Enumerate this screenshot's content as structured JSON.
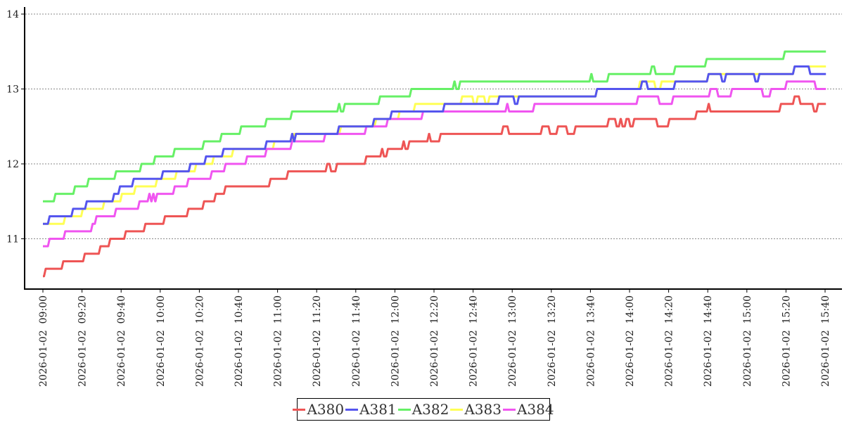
{
  "chart_data": {
    "type": "line",
    "step": true,
    "title": "",
    "xlabel": "",
    "ylabel": "",
    "x_unit": "minutes after 2026-01-02 09:00",
    "xlim": [
      0,
      400
    ],
    "ylim": [
      10.33,
      14.07
    ],
    "grid": "horizontal dotted",
    "y_ticks": [
      "11",
      "12",
      "13",
      "14"
    ],
    "y_tick_values": [
      11,
      12,
      13,
      14
    ],
    "x_ticks": [
      "2026-01-02  09:00",
      "2026-01-02  09:20",
      "2026-01-02  09:40",
      "2026-01-02  10:00",
      "2026-01-02  10:20",
      "2026-01-02  10:40",
      "2026-01-02  11:00",
      "2026-01-02  11:20",
      "2026-01-02  11:40",
      "2026-01-02  12:00",
      "2026-01-02  12:20",
      "2026-01-02  12:40",
      "2026-01-02  13:00",
      "2026-01-02  13:20",
      "2026-01-02  13:40",
      "2026-01-02  14:00",
      "2026-01-02  14:20",
      "2026-01-02  14:40",
      "2026-01-02  15:00",
      "2026-01-02  15:20",
      "2026-01-02  15:40"
    ],
    "legend_placement": "bottom-center",
    "series": [
      {
        "name": "A380",
        "color": "#ee5555",
        "points": [
          [
            0,
            10.5
          ],
          [
            1,
            10.6
          ],
          [
            10,
            10.7
          ],
          [
            21,
            10.8
          ],
          [
            29,
            10.9
          ],
          [
            34,
            11.0
          ],
          [
            42,
            11.1
          ],
          [
            52,
            11.2
          ],
          [
            62,
            11.3
          ],
          [
            74,
            11.4
          ],
          [
            82,
            11.5
          ],
          [
            88,
            11.6
          ],
          [
            93,
            11.7
          ],
          [
            116,
            11.8
          ],
          [
            125,
            11.9
          ],
          [
            145,
            12.0
          ],
          [
            147,
            11.9
          ],
          [
            150,
            12.0
          ],
          [
            165,
            12.1
          ],
          [
            173,
            12.2
          ],
          [
            174,
            12.1
          ],
          [
            176,
            12.2
          ],
          [
            184,
            12.3
          ],
          [
            185,
            12.2
          ],
          [
            187,
            12.3
          ],
          [
            197,
            12.4
          ],
          [
            198,
            12.3
          ],
          [
            203,
            12.4
          ],
          [
            235,
            12.5
          ],
          [
            238,
            12.4
          ],
          [
            255,
            12.5
          ],
          [
            259,
            12.4
          ],
          [
            263,
            12.5
          ],
          [
            268,
            12.4
          ],
          [
            272,
            12.5
          ],
          [
            289,
            12.6
          ],
          [
            293,
            12.5
          ],
          [
            295,
            12.6
          ],
          [
            296,
            12.5
          ],
          [
            298,
            12.6
          ],
          [
            300,
            12.5
          ],
          [
            302,
            12.6
          ],
          [
            314,
            12.5
          ],
          [
            320,
            12.6
          ],
          [
            334,
            12.7
          ],
          [
            340,
            12.8
          ],
          [
            341,
            12.7
          ],
          [
            377,
            12.8
          ],
          [
            384,
            12.9
          ],
          [
            387,
            12.8
          ],
          [
            394,
            12.7
          ],
          [
            396,
            12.8
          ],
          [
            400,
            12.8
          ]
        ]
      },
      {
        "name": "A381",
        "color": "#5555ee",
        "points": [
          [
            0,
            11.2
          ],
          [
            3,
            11.3
          ],
          [
            15,
            11.4
          ],
          [
            22,
            11.5
          ],
          [
            36,
            11.6
          ],
          [
            39,
            11.7
          ],
          [
            46,
            11.8
          ],
          [
            61,
            11.9
          ],
          [
            75,
            12.0
          ],
          [
            83,
            12.1
          ],
          [
            92,
            12.2
          ],
          [
            114,
            12.3
          ],
          [
            127,
            12.4
          ],
          [
            128,
            12.3
          ],
          [
            129,
            12.4
          ],
          [
            151,
            12.5
          ],
          [
            169,
            12.6
          ],
          [
            178,
            12.7
          ],
          [
            205,
            12.8
          ],
          [
            233,
            12.9
          ],
          [
            241,
            12.8
          ],
          [
            243,
            12.9
          ],
          [
            283,
            13.0
          ],
          [
            306,
            13.1
          ],
          [
            309,
            13.0
          ],
          [
            323,
            13.1
          ],
          [
            340,
            13.2
          ],
          [
            347,
            13.1
          ],
          [
            349,
            13.2
          ],
          [
            364,
            13.1
          ],
          [
            366,
            13.2
          ],
          [
            384,
            13.3
          ],
          [
            392,
            13.2
          ],
          [
            400,
            13.2
          ]
        ]
      },
      {
        "name": "A382",
        "color": "#66f066",
        "points": [
          [
            0,
            11.5
          ],
          [
            6,
            11.6
          ],
          [
            16,
            11.7
          ],
          [
            23,
            11.8
          ],
          [
            37,
            11.9
          ],
          [
            50,
            12.0
          ],
          [
            57,
            12.1
          ],
          [
            67,
            12.2
          ],
          [
            82,
            12.3
          ],
          [
            91,
            12.4
          ],
          [
            101,
            12.5
          ],
          [
            114,
            12.6
          ],
          [
            127,
            12.7
          ],
          [
            151,
            12.8
          ],
          [
            152,
            12.7
          ],
          [
            154,
            12.8
          ],
          [
            172,
            12.9
          ],
          [
            188,
            13.0
          ],
          [
            210,
            13.1
          ],
          [
            211,
            13.0
          ],
          [
            213,
            13.1
          ],
          [
            280,
            13.2
          ],
          [
            281,
            13.1
          ],
          [
            289,
            13.2
          ],
          [
            311,
            13.3
          ],
          [
            313,
            13.2
          ],
          [
            323,
            13.3
          ],
          [
            339,
            13.4
          ],
          [
            379,
            13.5
          ],
          [
            400,
            13.5
          ]
        ]
      },
      {
        "name": "A383",
        "color": "#ffff55",
        "points": [
          [
            0,
            11.2
          ],
          [
            11,
            11.3
          ],
          [
            20,
            11.4
          ],
          [
            31,
            11.5
          ],
          [
            40,
            11.6
          ],
          [
            47,
            11.7
          ],
          [
            58,
            11.8
          ],
          [
            68,
            11.9
          ],
          [
            78,
            12.0
          ],
          [
            87,
            12.1
          ],
          [
            97,
            12.2
          ],
          [
            118,
            12.3
          ],
          [
            128,
            12.4
          ],
          [
            152,
            12.5
          ],
          [
            170,
            12.6
          ],
          [
            182,
            12.7
          ],
          [
            190,
            12.8
          ],
          [
            214,
            12.9
          ],
          [
            220,
            12.8
          ],
          [
            222,
            12.9
          ],
          [
            226,
            12.8
          ],
          [
            228,
            12.9
          ],
          [
            283,
            13.0
          ],
          [
            305,
            13.1
          ],
          [
            313,
            13.0
          ],
          [
            316,
            13.1
          ],
          [
            340,
            13.2
          ],
          [
            384,
            13.3
          ],
          [
            400,
            13.3
          ]
        ]
      },
      {
        "name": "A384",
        "color": "#f055f0",
        "points": [
          [
            0,
            10.9
          ],
          [
            3,
            11.0
          ],
          [
            11,
            11.1
          ],
          [
            25,
            11.2
          ],
          [
            27,
            11.3
          ],
          [
            37,
            11.4
          ],
          [
            49,
            11.5
          ],
          [
            54,
            11.6
          ],
          [
            55,
            11.5
          ],
          [
            56,
            11.6
          ],
          [
            57,
            11.5
          ],
          [
            58,
            11.6
          ],
          [
            67,
            11.7
          ],
          [
            74,
            11.8
          ],
          [
            86,
            11.9
          ],
          [
            93,
            12.0
          ],
          [
            104,
            12.1
          ],
          [
            114,
            12.2
          ],
          [
            127,
            12.3
          ],
          [
            144,
            12.4
          ],
          [
            165,
            12.5
          ],
          [
            176,
            12.6
          ],
          [
            194,
            12.7
          ],
          [
            237,
            12.8
          ],
          [
            238,
            12.7
          ],
          [
            251,
            12.8
          ],
          [
            304,
            12.9
          ],
          [
            315,
            12.8
          ],
          [
            322,
            12.9
          ],
          [
            341,
            13.0
          ],
          [
            345,
            12.9
          ],
          [
            352,
            13.0
          ],
          [
            368,
            12.9
          ],
          [
            372,
            13.0
          ],
          [
            380,
            13.1
          ],
          [
            395,
            13.0
          ],
          [
            400,
            13.0
          ]
        ]
      }
    ],
    "draw_order": [
      "A380",
      "A383",
      "A384",
      "A382",
      "A381"
    ]
  }
}
